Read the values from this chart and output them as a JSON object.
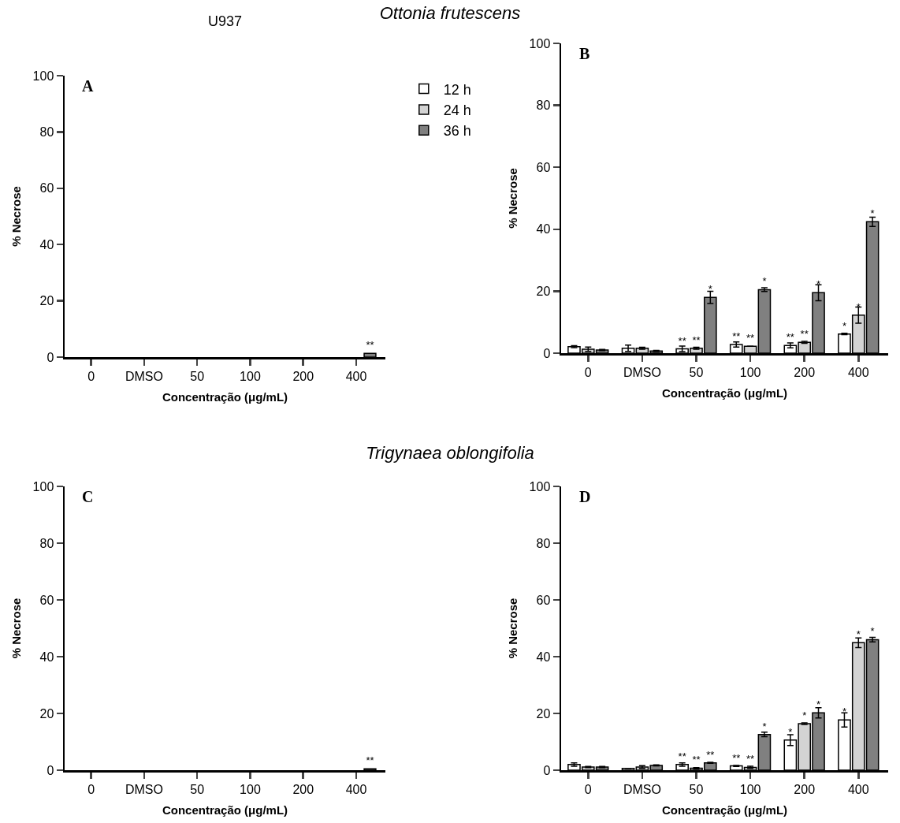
{
  "chart_data": [
    {
      "type": "bar",
      "title": "U937",
      "xlabel": "Concentração (μg/mL)",
      "ylabel": "% Necrose",
      "annotations": [
        "A"
      ],
      "categories": [
        "0",
        "DMSO",
        "50",
        "100",
        "200",
        "400"
      ],
      "ylim": [
        0,
        100
      ],
      "yticks": [
        0,
        20,
        40,
        60,
        80,
        100
      ],
      "grid": false,
      "legend": false,
      "series": [
        {
          "color": "#ffffff",
          "values": [
            null,
            null,
            null,
            null,
            null,
            null
          ]
        },
        {
          "color": "#d3d3d3",
          "values": [
            null,
            null,
            null,
            null,
            null,
            null
          ]
        },
        {
          "color": "#808080",
          "values": [
            null,
            null,
            null,
            null,
            null,
            1.3
          ],
          "value_labels": [
            null,
            null,
            null,
            null,
            null,
            "**"
          ]
        }
      ]
    },
    {
      "type": "bar",
      "title": "Ottonia frutescens",
      "xlabel": "Concentração (μg/mL)",
      "ylabel": "% Necrose",
      "annotations": [
        "B"
      ],
      "categories": [
        "0",
        "DMSO",
        "50",
        "100",
        "200",
        "400"
      ],
      "ylim": [
        0,
        100
      ],
      "yticks": [
        0,
        20,
        40,
        60,
        80,
        100
      ],
      "grid": false,
      "legend": "top left",
      "series": [
        {
          "name": "12 h",
          "color": "#ffffff",
          "values": [
            2.1,
            1.6,
            1.4,
            2.8,
            2.5,
            6.2
          ],
          "errors": [
            0.3,
            1,
            0.9,
            0.8,
            0.8,
            0.2
          ],
          "value_labels": [
            null,
            null,
            "**",
            "**",
            "**",
            "*"
          ]
        },
        {
          "name": "24 h",
          "color": "#d3d3d3",
          "values": [
            1.3,
            1.6,
            1.6,
            2.2,
            3.5,
            12.3
          ],
          "errors": [
            0.7,
            0.3,
            0.3,
            null,
            0.3,
            2.6
          ],
          "value_labels": [
            null,
            null,
            "**",
            "**",
            "**",
            "*"
          ]
        },
        {
          "name": "36 h",
          "color": "#808080",
          "values": [
            1.0,
            0.7,
            18.0,
            20.5,
            19.5,
            42.4
          ],
          "errors": [
            0.2,
            0.2,
            2,
            0.6,
            2.6,
            1.5
          ],
          "value_labels": [
            null,
            null,
            "*",
            "*",
            "*",
            "*"
          ]
        }
      ]
    },
    {
      "type": "bar",
      "xlabel": "Concentração (μg/mL)",
      "ylabel": "% Necrose",
      "annotations": [
        "C"
      ],
      "categories": [
        "0",
        "DMSO",
        "50",
        "100",
        "200",
        "400"
      ],
      "ylim": [
        0,
        100
      ],
      "yticks": [
        0,
        20,
        40,
        60,
        80,
        100
      ],
      "grid": false,
      "legend": false,
      "series": [
        {
          "color": "#ffffff",
          "values": [
            null,
            null,
            null,
            null,
            null,
            null
          ]
        },
        {
          "color": "#d3d3d3",
          "values": [
            null,
            null,
            null,
            null,
            null,
            null
          ]
        },
        {
          "color": "#808080",
          "values": [
            null,
            null,
            null,
            null,
            null,
            0.5
          ],
          "value_labels": [
            null,
            null,
            null,
            null,
            null,
            "**"
          ]
        }
      ]
    },
    {
      "type": "bar",
      "title": "Trigynaea oblongifolia",
      "xlabel": "Concentração (μg/mL)",
      "ylabel": "% Necrose",
      "annotations": [
        "D"
      ],
      "categories": [
        "0",
        "DMSO",
        "50",
        "100",
        "200",
        "400"
      ],
      "ylim": [
        0,
        100
      ],
      "yticks": [
        0,
        20,
        40,
        60,
        80,
        100
      ],
      "grid": false,
      "legend": false,
      "series": [
        {
          "color": "#ffffff",
          "values": [
            2.0,
            0.6,
            2.0,
            1.5,
            10.6,
            17.7
          ],
          "errors": [
            0.6,
            null,
            0.6,
            0.2,
            1.9,
            2.5
          ],
          "value_labels": [
            null,
            null,
            "**",
            "**",
            "*",
            "*"
          ]
        },
        {
          "color": "#d3d3d3",
          "values": [
            1.1,
            1.1,
            0.7,
            1.0,
            16.4,
            44.9
          ],
          "errors": [
            0.2,
            0.5,
            0.2,
            0.4,
            0.3,
            1.7
          ],
          "value_labels": [
            null,
            null,
            "**",
            "**",
            "*",
            "*"
          ]
        },
        {
          "color": "#808080",
          "values": [
            1.1,
            1.7,
            2.6,
            12.6,
            20.2,
            46.0
          ],
          "errors": [
            0.2,
            0.2,
            0.2,
            0.8,
            1.8,
            0.8
          ],
          "value_labels": [
            null,
            null,
            "**",
            "*",
            "*",
            "*"
          ]
        }
      ]
    }
  ]
}
